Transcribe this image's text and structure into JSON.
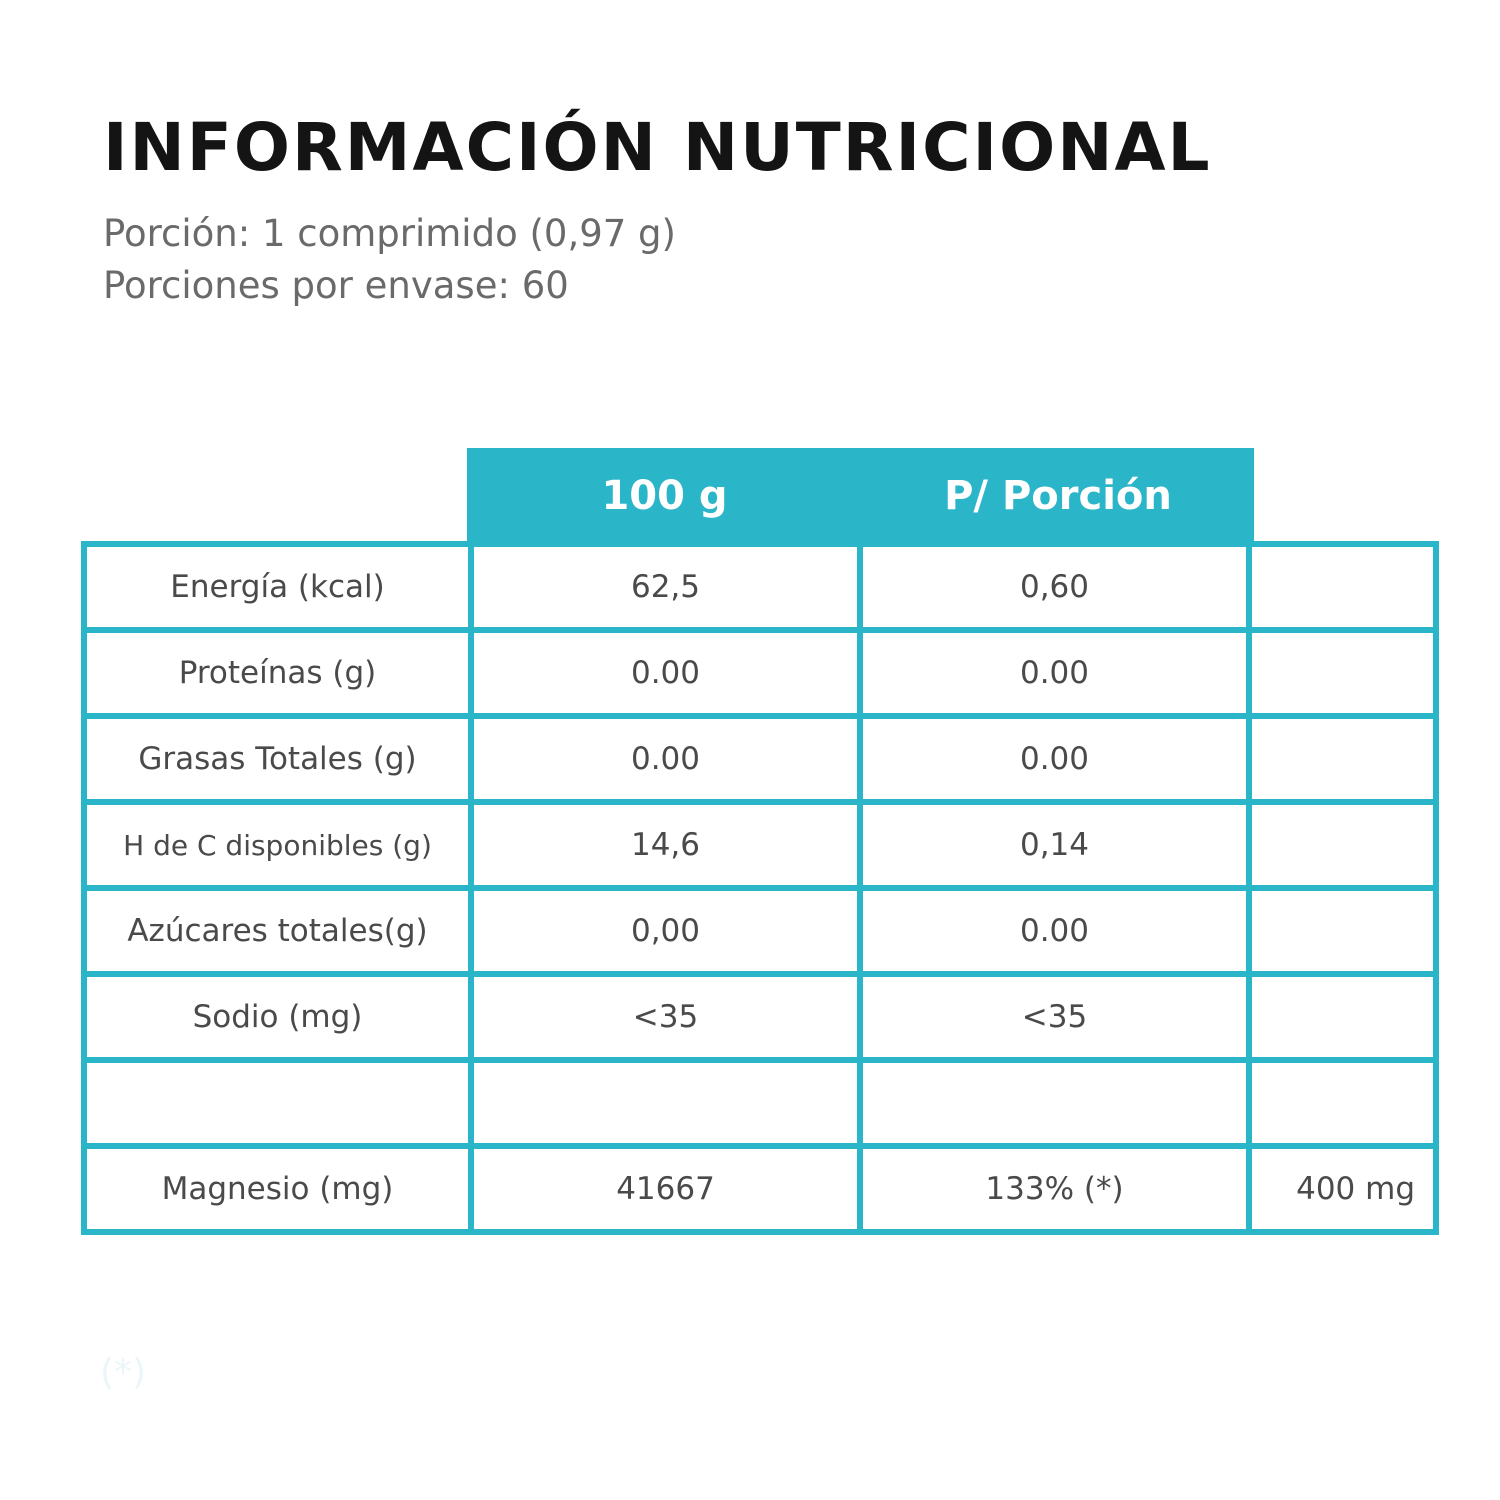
{
  "title": "INFORMACIÓN NUTRICIONAL",
  "serving_line": "Porción: 1 comprimido (0,97 g)",
  "servings_line": "Porciones por envase: 60",
  "header": {
    "col_100g": "100 g",
    "col_portion": "P/ Porción"
  },
  "rows": [
    {
      "label": "Energía (kcal)",
      "per100": "62,5",
      "portion": "0,60",
      "extra": ""
    },
    {
      "label": "Proteínas (g)",
      "per100": "0.00",
      "portion": "0.00",
      "extra": ""
    },
    {
      "label": "Grasas Totales (g)",
      "per100": "0.00",
      "portion": "0.00",
      "extra": ""
    },
    {
      "label": "H de C disponibles (g)",
      "per100": "14,6",
      "portion": "0,14",
      "extra": ""
    },
    {
      "label": "Azúcares totales(g)",
      "per100": "0,00",
      "portion": "0.00",
      "extra": ""
    },
    {
      "label": "Sodio (mg)",
      "per100": "<35",
      "portion": "<35",
      "extra": ""
    },
    {
      "label": "",
      "per100": "",
      "portion": "",
      "extra": ""
    },
    {
      "label": "Magnesio (mg)",
      "per100": "41667",
      "portion": "133% (*)",
      "extra": "400 mg"
    }
  ],
  "footnote": "(*)",
  "colors": {
    "accent": "#2bb5c9",
    "title": "#141414",
    "subtitle": "#6a6a6a",
    "cell_text": "#4a4a4a"
  }
}
